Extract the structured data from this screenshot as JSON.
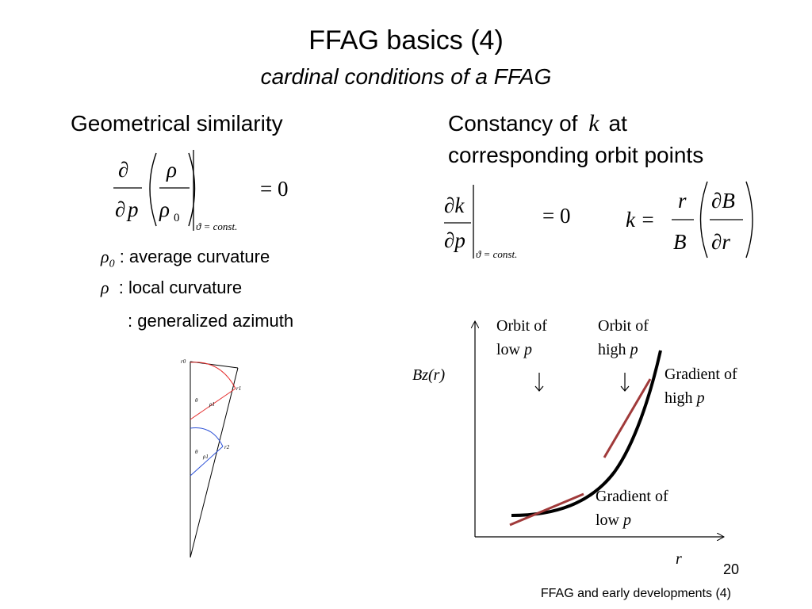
{
  "title": "FFAG basics (4)",
  "subtitle": "cardinal conditions of a FFAG",
  "left": {
    "heading": "Geometrical similarity",
    "eq": {
      "partial": "∂",
      "rho": "ρ",
      "p": "p",
      "rho0": "ρ",
      "rho0_sub": "0",
      "cond": "ϑ = const.",
      "rhs": "= 0"
    },
    "defs": [
      {
        "symbol": "ρ",
        "sub": "0",
        "text": ": average curvature"
      },
      {
        "symbol": "ρ",
        "sub": "",
        "text": ": local curvature"
      },
      {
        "symbol": "",
        "sub": "",
        "text": ": generalized azimuth"
      }
    ],
    "sketch": {
      "r0": "r0",
      "r1": "r1",
      "r2": "r2",
      "theta": "θ",
      "rho1": "ρ1",
      "rho2": "ρ1"
    }
  },
  "right": {
    "heading_line1": "Constancy of",
    "k_symbol": "k",
    "heading_at": "at",
    "heading_line2": "corresponding orbit points",
    "eq1": {
      "num": "∂k",
      "den": "∂p",
      "cond": "ϑ = const.",
      "rhs": "= 0"
    },
    "eq2": {
      "lhs": "k =",
      "r": "r",
      "B": "B",
      "num": "∂B",
      "den": "∂r"
    }
  },
  "plot": {
    "ylabel": "Bz(r)",
    "xlabel": "r",
    "orbit_low_1": "Orbit of",
    "orbit_low_2": "low",
    "orbit_high_1": "Orbit of",
    "orbit_high_2": "high",
    "p": "p",
    "grad_high_1": "Gradient of",
    "grad_high_2": "high",
    "grad_low_1": "Gradient of",
    "grad_low_2": "low",
    "colors": {
      "curve": "#000000",
      "tangent": "#a03a3a"
    }
  },
  "page_number": "20",
  "footer": "FFAG and early developments (4)"
}
